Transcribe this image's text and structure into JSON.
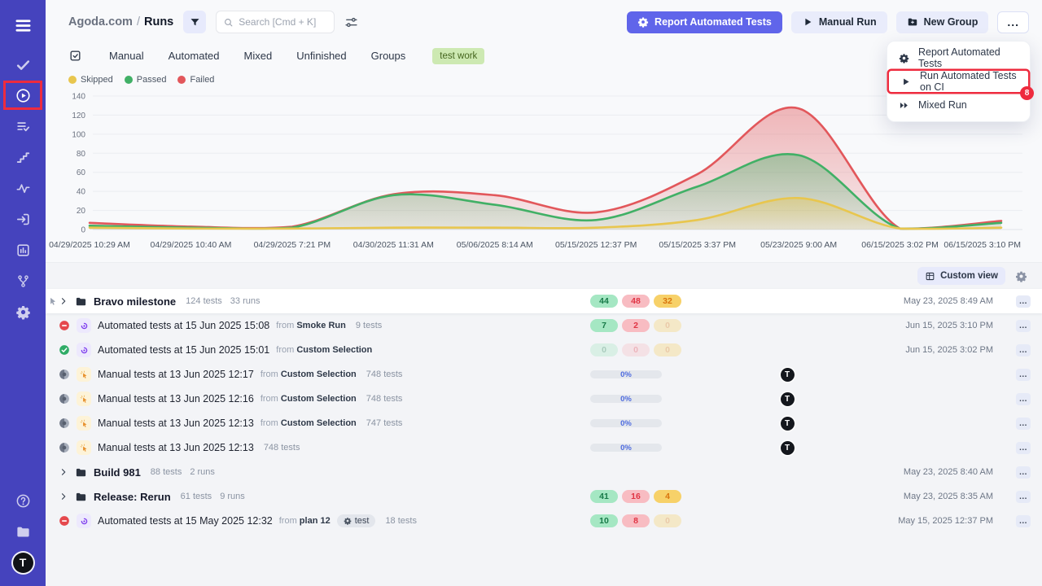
{
  "sidebar": {
    "items": [
      {
        "name": "menu",
        "active": true
      },
      {
        "name": "tasks-check",
        "active": false
      },
      {
        "name": "runs-play",
        "active": true,
        "annotated": true
      },
      {
        "name": "test-plans",
        "active": false
      },
      {
        "name": "milestones-steps",
        "active": false
      },
      {
        "name": "pulse-analytics",
        "active": false
      },
      {
        "name": "import",
        "active": false
      },
      {
        "name": "reports-chart",
        "active": false
      },
      {
        "name": "branch",
        "active": false
      },
      {
        "name": "settings-gear",
        "active": false
      }
    ],
    "bottom_items": [
      {
        "name": "help"
      },
      {
        "name": "projects-folder"
      }
    ],
    "logo_letter": "T"
  },
  "header": {
    "breadcrumb": {
      "project": "Agoda.com",
      "separator": "/",
      "page": "Runs"
    },
    "search_placeholder": "Search [Cmd + K]",
    "buttons": {
      "report_automated": "Report Automated Tests",
      "manual_run": "Manual Run",
      "new_group": "New Group",
      "more": "..."
    }
  },
  "tabs": [
    {
      "label": "Manual"
    },
    {
      "label": "Automated"
    },
    {
      "label": "Mixed"
    },
    {
      "label": "Unfinished"
    },
    {
      "label": "Groups"
    }
  ],
  "filter_tag": "test work",
  "dropdown_menu": {
    "items": [
      {
        "label": "Report Automated Tests",
        "icon": "gear-run"
      },
      {
        "label": "Run Automated Tests on CI",
        "icon": "play",
        "annotated": true,
        "annotation_badge": "8"
      },
      {
        "label": "Mixed Run",
        "icon": "fast-forward"
      }
    ]
  },
  "chart_data": {
    "type": "area",
    "title": "",
    "x": [
      "04/29/2025 10:29 AM",
      "04/29/2025 10:40 AM",
      "04/29/2025 7:21 PM",
      "04/30/2025 11:31 AM",
      "05/06/2025 8:14 AM",
      "05/15/2025 12:37 PM",
      "05/15/2025 3:37 PM",
      "05/23/2025 9:00 AM",
      "06/15/2025 3:02 PM",
      "06/15/2025 3:10 PM"
    ],
    "series": [
      {
        "name": "Skipped",
        "color": "#e8c64e",
        "values": [
          2,
          1,
          1,
          2,
          2,
          2,
          10,
          33,
          1,
          2
        ]
      },
      {
        "name": "Passed",
        "color": "#41b066",
        "values": [
          4,
          2,
          2,
          36,
          26,
          10,
          45,
          78,
          1,
          7
        ]
      },
      {
        "name": "Failed",
        "color": "#e2575b",
        "values": [
          7,
          3,
          3,
          37,
          36,
          18,
          58,
          127,
          1,
          9
        ]
      }
    ],
    "ylim": [
      0,
      140
    ],
    "yticks": [
      0,
      20,
      40,
      60,
      80,
      100,
      120,
      140
    ],
    "grid": true,
    "legend_position": "top-left"
  },
  "table": {
    "custom_view_label": "Custom view",
    "from_label": "from",
    "more_label": "...",
    "rows": [
      {
        "type": "group",
        "title": "Bravo milestone",
        "meta": [
          "124 tests",
          "33 runs"
        ],
        "badges": [
          {
            "v": "44",
            "c": "green"
          },
          {
            "v": "48",
            "c": "red"
          },
          {
            "v": "32",
            "c": "yellow"
          }
        ],
        "date": "May 23, 2025 8:49 AM",
        "highlight": true,
        "drag": true
      },
      {
        "type": "run",
        "status": "failed",
        "kind": "automated",
        "title": "Automated tests at 15 Jun 2025 15:08",
        "from": "Smoke Run",
        "meta": [
          "9 tests"
        ],
        "badges": [
          {
            "v": "7",
            "c": "green"
          },
          {
            "v": "2",
            "c": "red"
          },
          {
            "v": "0",
            "c": "yellow",
            "faded": true
          }
        ],
        "date": "Jun 15, 2025 3:10 PM"
      },
      {
        "type": "run",
        "status": "passed",
        "kind": "automated",
        "title": "Automated tests at 15 Jun 2025 15:01",
        "from": "Custom Selection",
        "meta": [],
        "badges": [
          {
            "v": "0",
            "c": "green",
            "faded": true
          },
          {
            "v": "0",
            "c": "red",
            "faded": true
          },
          {
            "v": "0",
            "c": "yellow",
            "faded": true
          }
        ],
        "date": "Jun 15, 2025 3:02 PM"
      },
      {
        "type": "run",
        "status": "pending",
        "kind": "manual",
        "title": "Manual tests at 13 Jun 2025 12:17",
        "from": "Custom Selection",
        "meta": [
          "748 tests"
        ],
        "progress": "0%",
        "assignee": "T"
      },
      {
        "type": "run",
        "status": "pending",
        "kind": "manual",
        "title": "Manual tests at 13 Jun 2025 12:16",
        "from": "Custom Selection",
        "meta": [
          "748 tests"
        ],
        "progress": "0%",
        "assignee": "T"
      },
      {
        "type": "run",
        "status": "pending",
        "kind": "manual",
        "title": "Manual tests at 13 Jun 2025 12:13",
        "from": "Custom Selection",
        "meta": [
          "747 tests"
        ],
        "progress": "0%",
        "assignee": "T"
      },
      {
        "type": "run",
        "status": "pending",
        "kind": "manual",
        "title": "Manual tests at 13 Jun 2025 12:13",
        "meta": [
          "748 tests"
        ],
        "progress": "0%",
        "assignee": "T"
      },
      {
        "type": "group",
        "title": "Build 981",
        "meta": [
          "88 tests",
          "2 runs"
        ],
        "badges": [],
        "date": "May 23, 2025 8:40 AM"
      },
      {
        "type": "group",
        "title": "Release: Rerun",
        "meta": [
          "61 tests",
          "9 runs"
        ],
        "badges": [
          {
            "v": "41",
            "c": "green"
          },
          {
            "v": "16",
            "c": "red"
          },
          {
            "v": "4",
            "c": "yellow"
          }
        ],
        "date": "May 23, 2025 8:35 AM"
      },
      {
        "type": "run",
        "status": "failed",
        "kind": "automated",
        "title": "Automated tests at 15 May 2025 12:32",
        "from": "plan 12",
        "tag": "test",
        "meta": [
          "18 tests"
        ],
        "badges": [
          {
            "v": "10",
            "c": "green"
          },
          {
            "v": "8",
            "c": "red"
          },
          {
            "v": "0",
            "c": "yellow",
            "faded": true
          }
        ],
        "date": "May 15, 2025 12:37 PM"
      }
    ]
  }
}
